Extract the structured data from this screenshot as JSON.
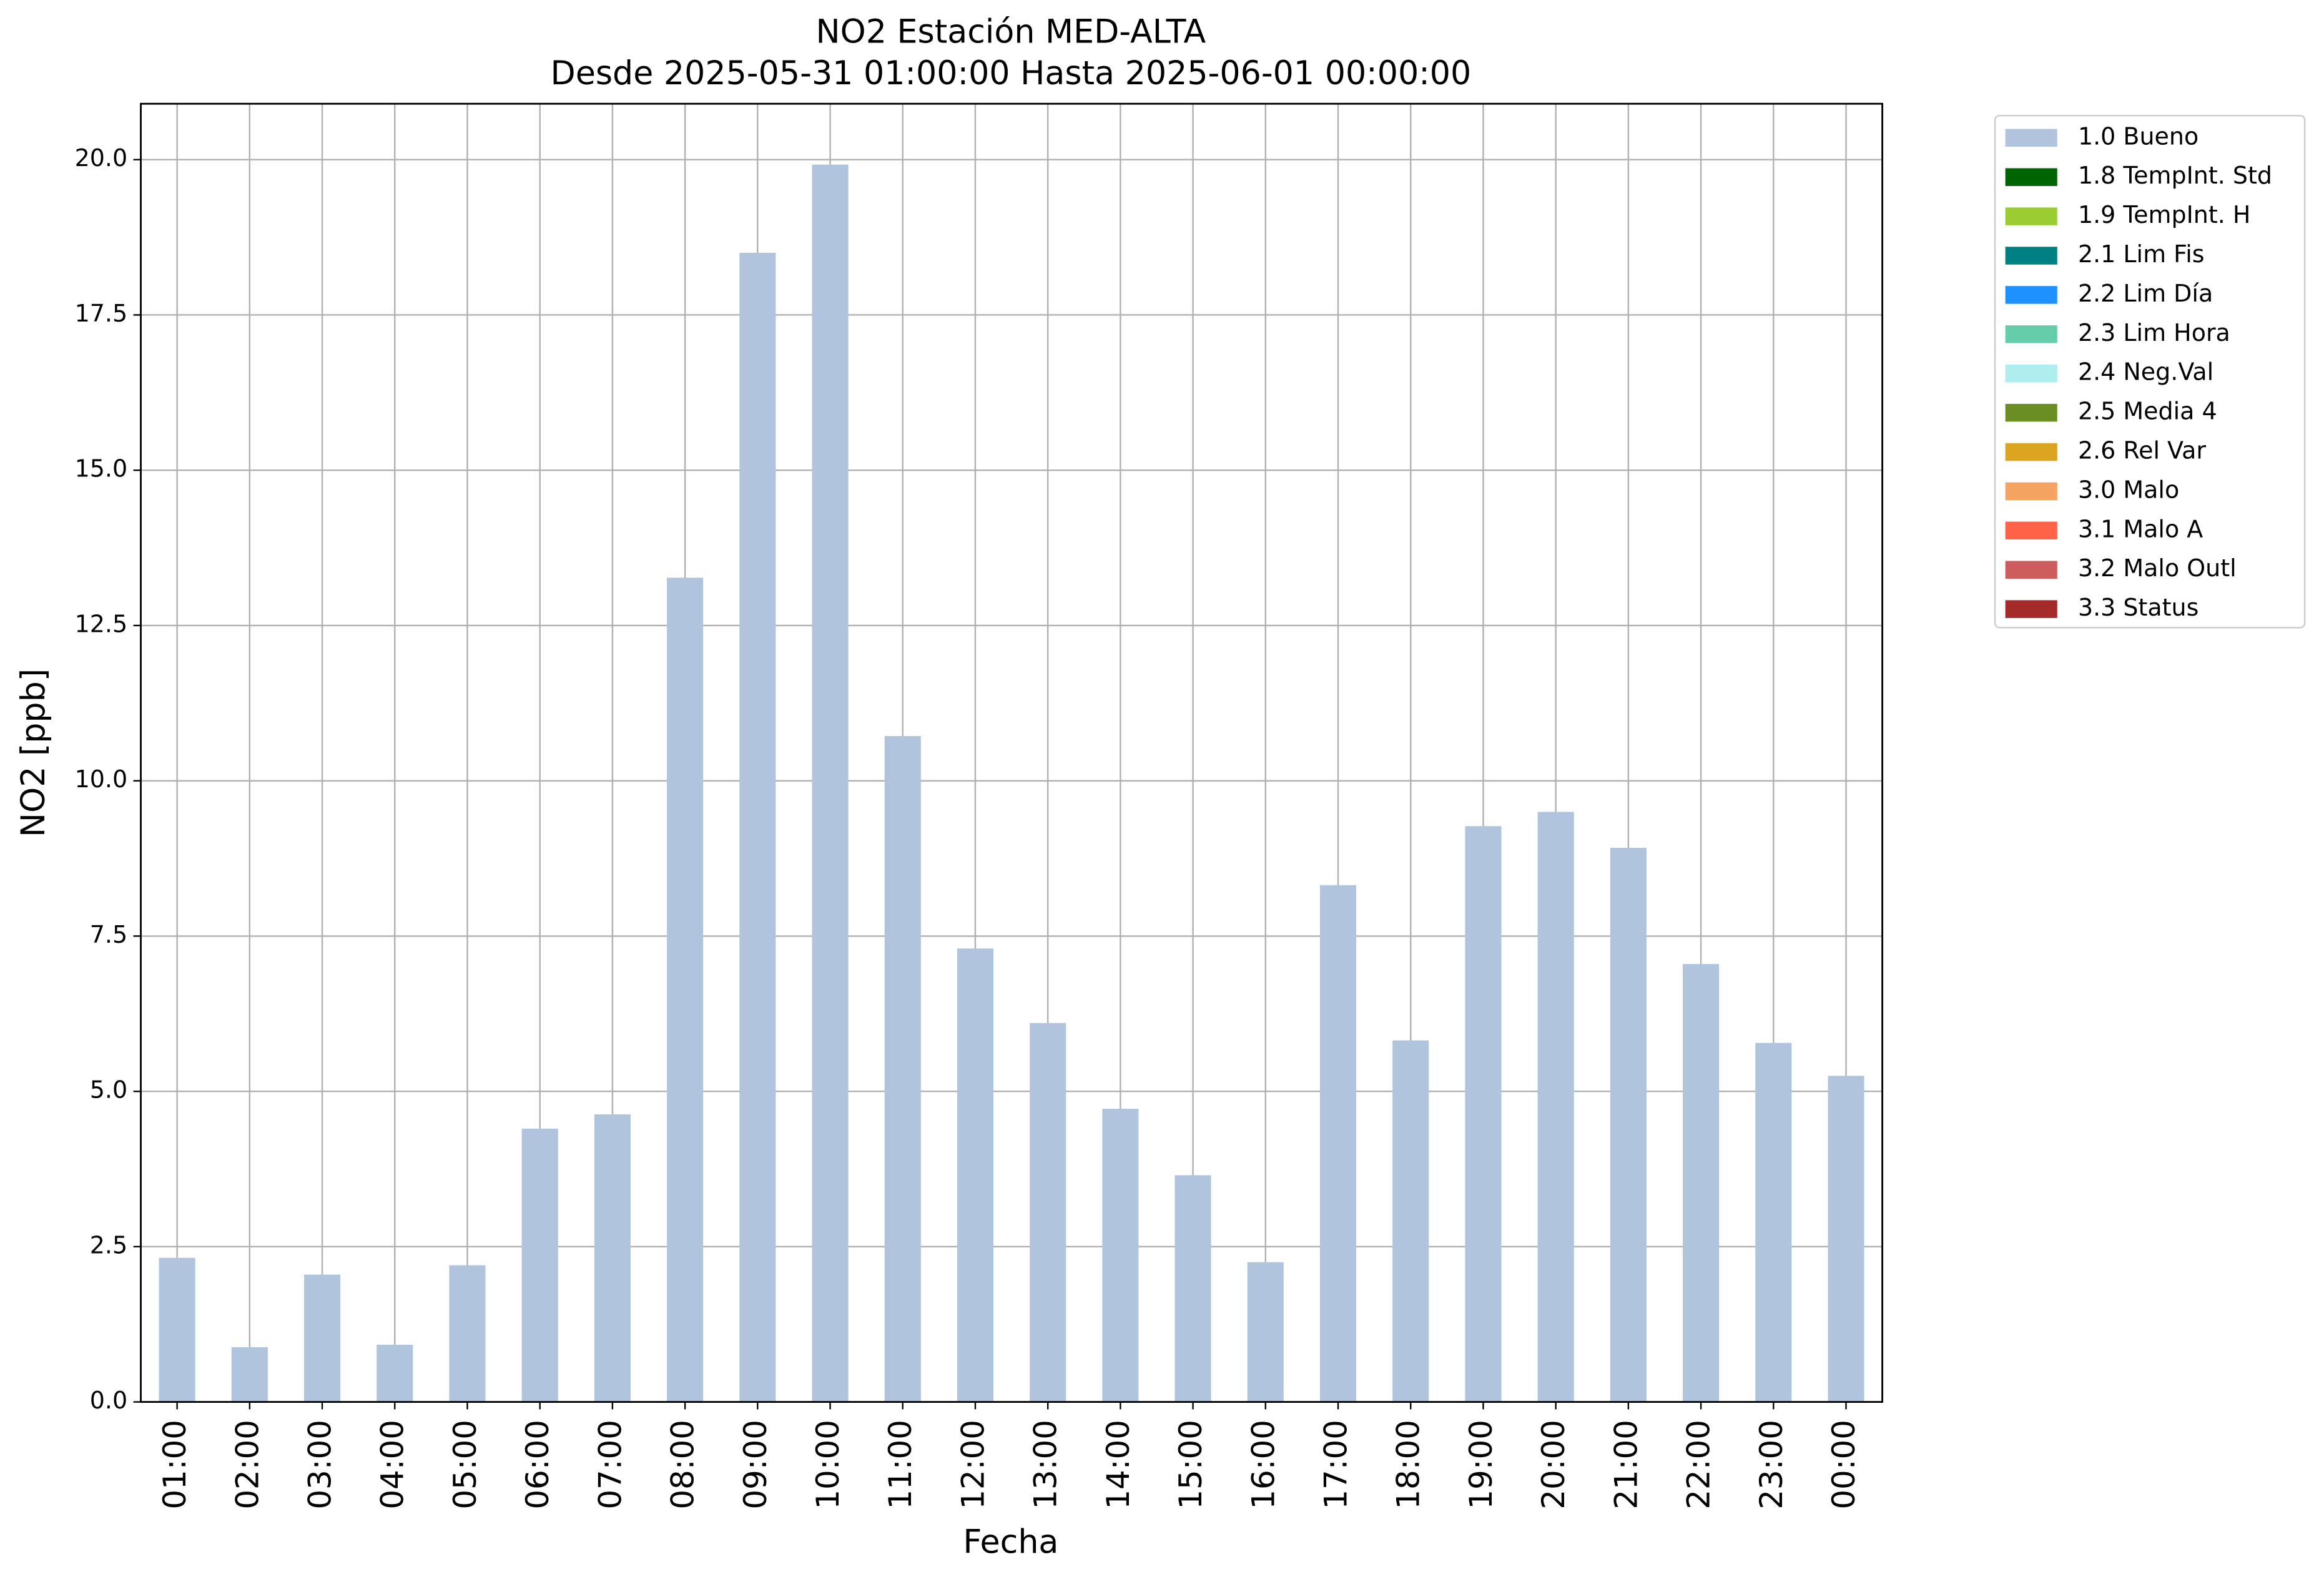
{
  "chart_data": {
    "type": "stacked-bar",
    "title": "NO2 Estación MED-ALTA",
    "subtitle": "Desde 2025-05-31 01:00:00 Hasta 2025-06-01 00:00:00",
    "x_label": "Fecha",
    "y_label": "NO2 [ppb]",
    "categories": [
      "01:00",
      "02:00",
      "03:00",
      "04:00",
      "05:00",
      "06:00",
      "07:00",
      "08:00",
      "09:00",
      "10:00",
      "11:00",
      "12:00",
      "13:00",
      "14:00",
      "15:00",
      "16:00",
      "17:00",
      "18:00",
      "19:00",
      "20:00",
      "21:00",
      "22:00",
      "23:00",
      "00:00"
    ],
    "series": [
      {
        "name": "1.0 Bueno",
        "color": "#b0c4de",
        "values": [
          2.32,
          0.88,
          2.05,
          0.92,
          2.2,
          4.4,
          4.63,
          13.27,
          18.5,
          19.92,
          10.72,
          7.3,
          6.1,
          4.72,
          3.65,
          2.25,
          8.32,
          5.82,
          9.27,
          9.5,
          8.92,
          7.05,
          5.78,
          5.25
        ]
      },
      {
        "name": "1.8 TempInt. Std",
        "color": "#006400",
        "values": [
          0,
          0,
          0,
          0,
          0,
          0,
          0,
          0,
          0,
          0,
          0,
          0,
          0,
          0,
          0,
          0,
          0,
          0,
          0,
          0,
          0,
          0,
          0,
          0
        ]
      },
      {
        "name": "1.9 TempInt. H",
        "color": "#9acd32",
        "values": [
          0,
          0,
          0,
          0,
          0,
          0,
          0,
          0,
          0,
          0,
          0,
          0,
          0,
          0,
          0,
          0,
          0,
          0,
          0,
          0,
          0,
          0,
          0,
          0
        ]
      },
      {
        "name": "2.1 Lim Fis",
        "color": "#008080",
        "values": [
          0,
          0,
          0,
          0,
          0,
          0,
          0,
          0,
          0,
          0,
          0,
          0,
          0,
          0,
          0,
          0,
          0,
          0,
          0,
          0,
          0,
          0,
          0,
          0
        ]
      },
      {
        "name": "2.2 Lim Día",
        "color": "#1e90ff",
        "values": [
          0,
          0,
          0,
          0,
          0,
          0,
          0,
          0,
          0,
          0,
          0,
          0,
          0,
          0,
          0,
          0,
          0,
          0,
          0,
          0,
          0,
          0,
          0,
          0
        ]
      },
      {
        "name": "2.3 Lim Hora",
        "color": "#66cdaa",
        "values": [
          0,
          0,
          0,
          0,
          0,
          0,
          0,
          0,
          0,
          0,
          0,
          0,
          0,
          0,
          0,
          0,
          0,
          0,
          0,
          0,
          0,
          0,
          0,
          0
        ]
      },
      {
        "name": "2.4 Neg.Val",
        "color": "#afeeee",
        "values": [
          0,
          0,
          0,
          0,
          0,
          0,
          0,
          0,
          0,
          0,
          0,
          0,
          0,
          0,
          0,
          0,
          0,
          0,
          0,
          0,
          0,
          0,
          0,
          0
        ]
      },
      {
        "name": "2.5 Media 4",
        "color": "#6b8e23",
        "values": [
          0,
          0,
          0,
          0,
          0,
          0,
          0,
          0,
          0,
          0,
          0,
          0,
          0,
          0,
          0,
          0,
          0,
          0,
          0,
          0,
          0,
          0,
          0,
          0
        ]
      },
      {
        "name": "2.6 Rel Var",
        "color": "#daa520",
        "values": [
          0,
          0,
          0,
          0,
          0,
          0,
          0,
          0,
          0,
          0,
          0,
          0,
          0,
          0,
          0,
          0,
          0,
          0,
          0,
          0,
          0,
          0,
          0,
          0
        ]
      },
      {
        "name": "3.0 Malo",
        "color": "#f4a460",
        "values": [
          0,
          0,
          0,
          0,
          0,
          0,
          0,
          0,
          0,
          0,
          0,
          0,
          0,
          0,
          0,
          0,
          0,
          0,
          0,
          0,
          0,
          0,
          0,
          0
        ]
      },
      {
        "name": "3.1 Malo A",
        "color": "#ff6347",
        "values": [
          0,
          0,
          0,
          0,
          0,
          0,
          0,
          0,
          0,
          0,
          0,
          0,
          0,
          0,
          0,
          0,
          0,
          0,
          0,
          0,
          0,
          0,
          0,
          0
        ]
      },
      {
        "name": "3.2 Malo Outl",
        "color": "#cd5c5c",
        "values": [
          0,
          0,
          0,
          0,
          0,
          0,
          0,
          0,
          0,
          0,
          0,
          0,
          0,
          0,
          0,
          0,
          0,
          0,
          0,
          0,
          0,
          0,
          0,
          0
        ]
      },
      {
        "name": "3.3 Status",
        "color": "#a52a2a",
        "values": [
          0,
          0,
          0,
          0,
          0,
          0,
          0,
          0,
          0,
          0,
          0,
          0,
          0,
          0,
          0,
          0,
          0,
          0,
          0,
          0,
          0,
          0,
          0,
          0
        ]
      }
    ],
    "ylim": [
      0,
      20.9
    ],
    "yticks": [
      {
        "value": 0,
        "label": "0.0"
      },
      2.5,
      {
        "value": 5,
        "label": "5.0"
      },
      7.5,
      {
        "value": 10,
        "label": "10.0"
      },
      12.5,
      {
        "value": 15,
        "label": "15.0"
      },
      17.5,
      {
        "value": 20,
        "label": "20.0"
      }
    ],
    "grid": true,
    "legend": "outside right"
  }
}
